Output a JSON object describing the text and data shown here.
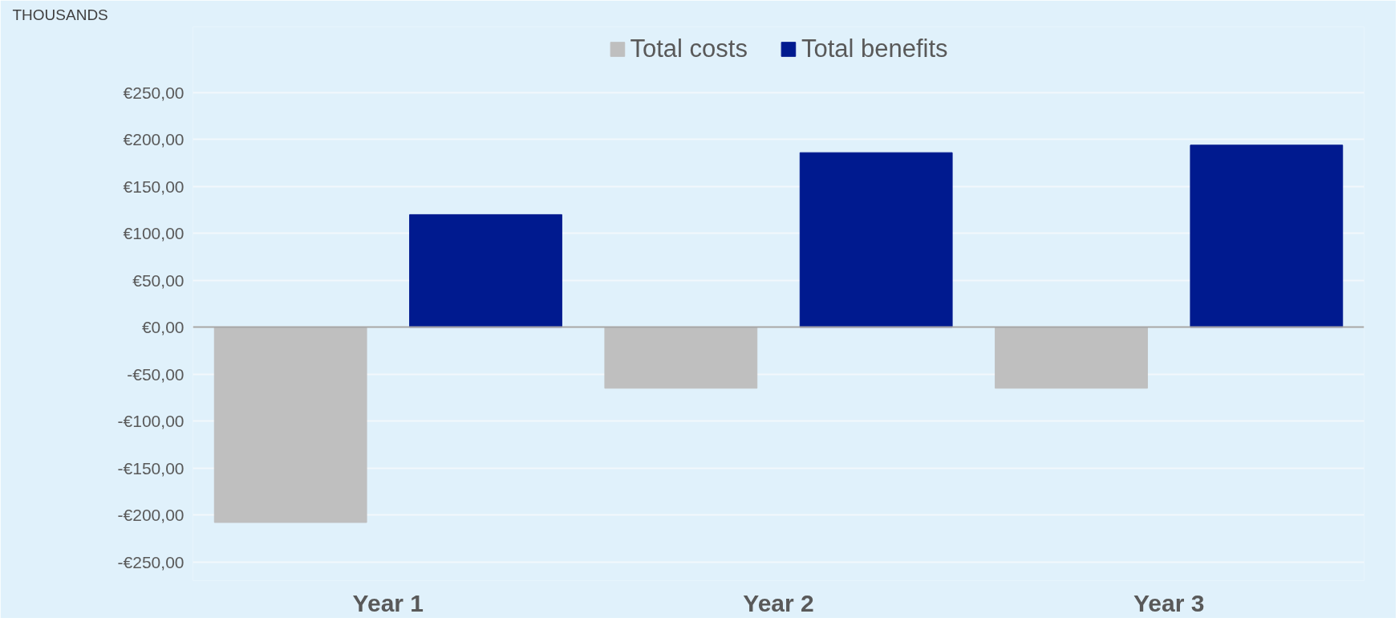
{
  "chart_data": {
    "type": "bar",
    "annotations": [
      "THOUSANDS"
    ],
    "categories": [
      "Year 1",
      "Year 2",
      "Year 3"
    ],
    "series": [
      {
        "name": "Total costs",
        "color": "#bfbfbf",
        "values": [
          -208,
          -65,
          -65
        ]
      },
      {
        "name": "Total benefits",
        "color": "#001a8f",
        "values": [
          120,
          186,
          194
        ]
      }
    ],
    "ylim": [
      -270,
      320
    ],
    "yticks": [
      {
        "value": -250,
        "label": "-€250,00"
      },
      {
        "value": -200,
        "label": "-€200,00"
      },
      {
        "value": -150,
        "label": "-€150,00"
      },
      {
        "value": -100,
        "label": "-€100,00"
      },
      {
        "value": -50,
        "label": "-€50,00"
      },
      {
        "value": 0,
        "label": "€0,00"
      },
      {
        "value": 50,
        "label": "€50,00"
      },
      {
        "value": 100,
        "label": "€100,00"
      },
      {
        "value": 150,
        "label": "€150,00"
      },
      {
        "value": 200,
        "label": "€200,00"
      },
      {
        "value": 250,
        "label": "€250,00"
      }
    ],
    "grid": "y",
    "legend": "top"
  }
}
